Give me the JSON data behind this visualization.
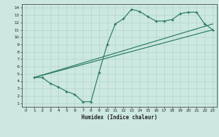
{
  "xlabel": "Humidex (Indice chaleur)",
  "background_color": "#cce8e0",
  "line_color": "#2d7a6a",
  "xlim": [
    -0.5,
    23.5
  ],
  "ylim": [
    0.5,
    14.5
  ],
  "xticks": [
    0,
    1,
    2,
    3,
    4,
    5,
    6,
    7,
    8,
    9,
    10,
    11,
    12,
    13,
    14,
    15,
    16,
    17,
    18,
    19,
    20,
    21,
    22,
    23
  ],
  "yticks": [
    1,
    2,
    3,
    4,
    5,
    6,
    7,
    8,
    9,
    10,
    11,
    12,
    13,
    14
  ],
  "curve_x": [
    1,
    2,
    3,
    4,
    5,
    6,
    7,
    8,
    9,
    10,
    11,
    12,
    13,
    14,
    15,
    16,
    17,
    18,
    19,
    20,
    21,
    22,
    23
  ],
  "curve_y": [
    4.5,
    4.5,
    3.7,
    3.2,
    2.6,
    2.2,
    1.2,
    1.2,
    5.2,
    9.0,
    11.8,
    12.5,
    13.8,
    13.5,
    12.8,
    12.2,
    12.2,
    12.4,
    13.2,
    13.4,
    13.4,
    11.8,
    11.0
  ],
  "line2_x": [
    1,
    23
  ],
  "line2_y": [
    4.5,
    11.0
  ],
  "line3_x": [
    1,
    23
  ],
  "line3_y": [
    4.5,
    11.8
  ]
}
